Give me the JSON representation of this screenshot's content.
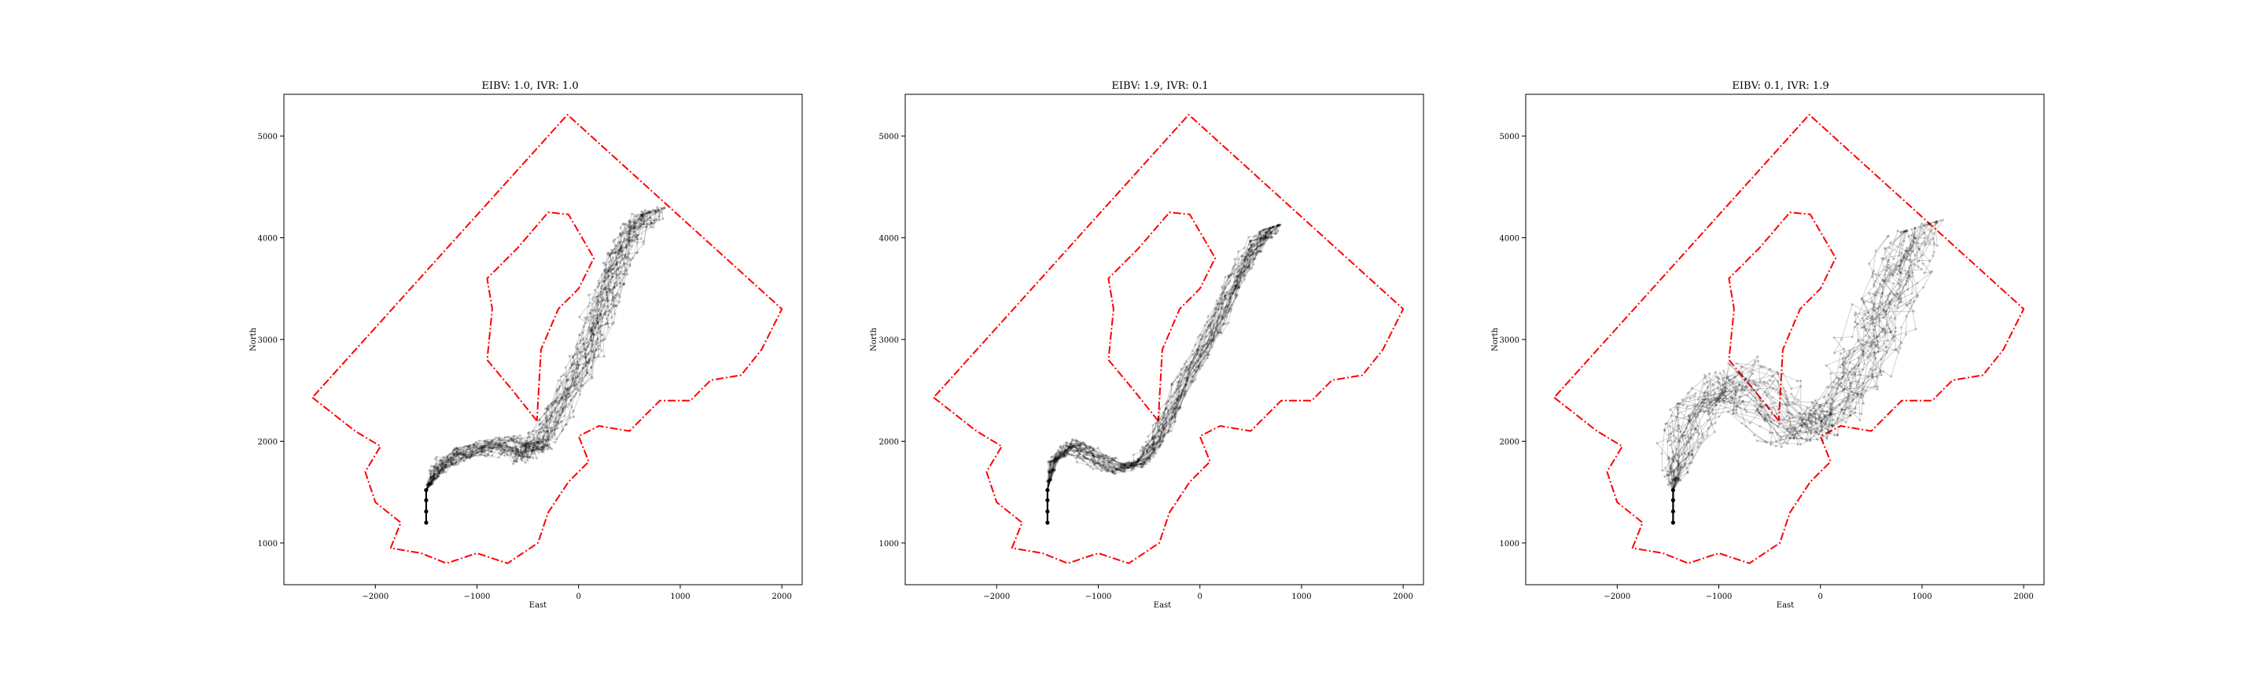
{
  "colors": {
    "boundary": "#ff0000",
    "paths": "#000000"
  },
  "chart_data": [
    {
      "type": "line",
      "title": "EIBV: 1.0, IVR: 1.0",
      "xlabel": "East",
      "ylabel": "North",
      "xlim": [
        -2900,
        2200
      ],
      "ylim": [
        590,
        5410
      ],
      "xticks": [
        -2000,
        -1000,
        0,
        1000,
        2000
      ],
      "yticks": [
        1000,
        2000,
        3000,
        4000,
        5000
      ],
      "xtick_labels": [
        "−2000",
        "−1000",
        "0",
        "1000",
        "2000"
      ],
      "ytick_labels": [
        "1000",
        "2000",
        "3000",
        "4000",
        "5000"
      ],
      "grid": false,
      "seed": 11,
      "start": [
        [
          -1500,
          1200
        ],
        [
          -1500,
          1310
        ],
        [
          -1500,
          1420
        ],
        [
          -1500,
          1520
        ]
      ],
      "centerline": [
        [
          -1500,
          1520
        ],
        [
          -1400,
          1700
        ],
        [
          -1250,
          1840
        ],
        [
          -1000,
          1920
        ],
        [
          -700,
          1960
        ],
        [
          -520,
          1880
        ],
        [
          -400,
          1960
        ],
        [
          -250,
          2250
        ],
        [
          -50,
          2600
        ],
        [
          100,
          2950
        ],
        [
          200,
          3250
        ],
        [
          300,
          3550
        ],
        [
          400,
          3850
        ],
        [
          550,
          4100
        ],
        [
          700,
          4250
        ]
      ],
      "spread": 150,
      "n_paths": 30
    },
    {
      "type": "line",
      "title": "EIBV: 1.9, IVR: 0.1",
      "xlabel": "East",
      "ylabel": "North",
      "xlim": [
        -2900,
        2200
      ],
      "ylim": [
        590,
        5410
      ],
      "xticks": [
        -2000,
        -1000,
        0,
        1000,
        2000
      ],
      "yticks": [
        1000,
        2000,
        3000,
        4000,
        5000
      ],
      "xtick_labels": [
        "−2000",
        "−1000",
        "0",
        "1000",
        "2000"
      ],
      "ytick_labels": [
        "1000",
        "2000",
        "3000",
        "4000",
        "5000"
      ],
      "grid": false,
      "seed": 23,
      "start": [
        [
          -1500,
          1200
        ],
        [
          -1500,
          1310
        ],
        [
          -1500,
          1420
        ],
        [
          -1500,
          1520
        ]
      ],
      "centerline": [
        [
          -1500,
          1520
        ],
        [
          -1450,
          1800
        ],
        [
          -1300,
          1950
        ],
        [
          -1100,
          1860
        ],
        [
          -850,
          1720
        ],
        [
          -600,
          1780
        ],
        [
          -450,
          2000
        ],
        [
          -300,
          2300
        ],
        [
          -100,
          2700
        ],
        [
          100,
          3050
        ],
        [
          250,
          3400
        ],
        [
          400,
          3700
        ],
        [
          550,
          3950
        ],
        [
          700,
          4100
        ]
      ],
      "spread": 90,
      "n_paths": 30
    },
    {
      "type": "line",
      "title": "EIBV: 0.1, IVR: 1.9",
      "xlabel": "East",
      "ylabel": "North",
      "xlim": [
        -2900,
        2200
      ],
      "ylim": [
        590,
        5410
      ],
      "xticks": [
        -2000,
        -1000,
        0,
        1000,
        2000
      ],
      "yticks": [
        1000,
        2000,
        3000,
        4000,
        5000
      ],
      "xtick_labels": [
        "−2000",
        "−1000",
        "0",
        "1000",
        "2000"
      ],
      "ytick_labels": [
        "1000",
        "2000",
        "3000",
        "4000",
        "5000"
      ],
      "grid": false,
      "seed": 37,
      "start": [
        [
          -1450,
          1200
        ],
        [
          -1450,
          1310
        ],
        [
          -1450,
          1420
        ],
        [
          -1450,
          1520
        ]
      ],
      "centerline": [
        [
          -1450,
          1520
        ],
        [
          -1400,
          1800
        ],
        [
          -1250,
          2250
        ],
        [
          -950,
          2600
        ],
        [
          -600,
          2450
        ],
        [
          -300,
          2150
        ],
        [
          0,
          2150
        ],
        [
          300,
          2500
        ],
        [
          500,
          2950
        ],
        [
          650,
          3350
        ],
        [
          800,
          3750
        ],
        [
          950,
          4100
        ]
      ],
      "spread": 320,
      "n_paths": 30
    }
  ],
  "boundary": [
    [
      -2620,
      2430
    ],
    [
      -2200,
      2100
    ],
    [
      -1950,
      1950
    ],
    [
      -2100,
      1700
    ],
    [
      -2000,
      1400
    ],
    [
      -1750,
      1200
    ],
    [
      -1850,
      950
    ],
    [
      -1550,
      900
    ],
    [
      -1300,
      800
    ],
    [
      -1000,
      900
    ],
    [
      -700,
      800
    ],
    [
      -400,
      1000
    ],
    [
      -300,
      1300
    ],
    [
      -100,
      1600
    ],
    [
      100,
      1800
    ],
    [
      0,
      2050
    ],
    [
      200,
      2150
    ],
    [
      500,
      2100
    ],
    [
      800,
      2400
    ],
    [
      1100,
      2400
    ],
    [
      1300,
      2600
    ],
    [
      1600,
      2650
    ],
    [
      1800,
      2900
    ],
    [
      2000,
      3300
    ],
    [
      -110,
      5210
    ],
    [
      -2620,
      2430
    ]
  ],
  "island": [
    [
      -410,
      2200
    ],
    [
      -650,
      2500
    ],
    [
      -900,
      2800
    ],
    [
      -850,
      3300
    ],
    [
      -900,
      3600
    ],
    [
      -600,
      3900
    ],
    [
      -300,
      4250
    ],
    [
      -100,
      4230
    ],
    [
      150,
      3800
    ],
    [
      0,
      3500
    ],
    [
      -200,
      3300
    ],
    [
      -370,
      2900
    ],
    [
      -410,
      2200
    ]
  ]
}
